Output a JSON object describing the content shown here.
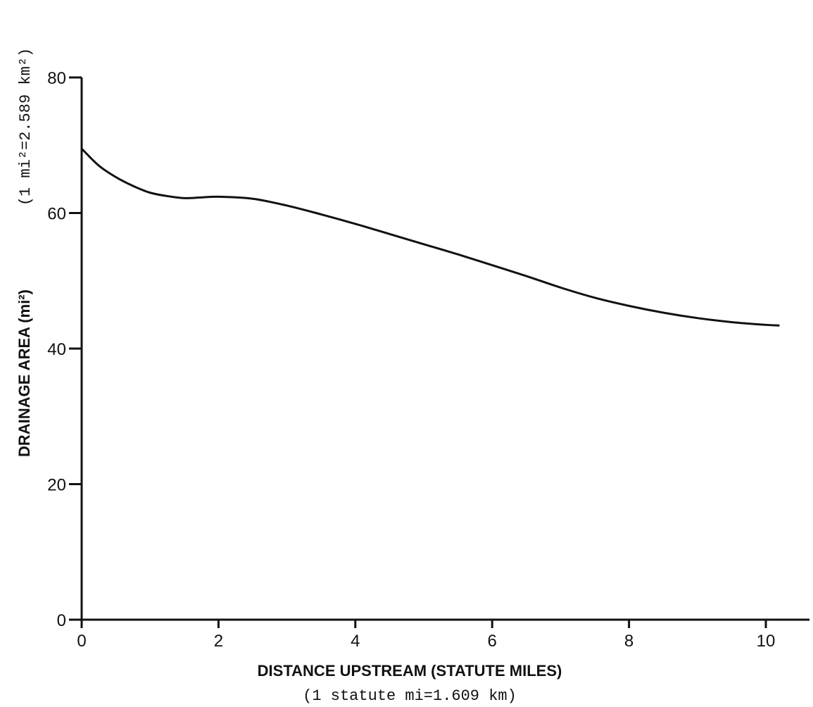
{
  "chart_data": {
    "type": "line",
    "xlabel": "DISTANCE UPSTREAM (STATUTE MILES)",
    "xlabel_sub": "(1 statute mi=1.609 km)",
    "ylabel": "DRAINAGE AREA (mi²)",
    "ylabel_sub": "(1 mi²=2.589 km²)",
    "xlim": [
      0,
      10.5
    ],
    "ylim": [
      0,
      80
    ],
    "x_ticks": [
      0,
      2,
      4,
      6,
      8,
      10
    ],
    "x_tick_labels": [
      "0",
      "2",
      "4",
      "6",
      "8",
      "10"
    ],
    "y_ticks": [
      0,
      20,
      40,
      60,
      80
    ],
    "y_tick_labels": [
      "0",
      "20",
      "40",
      "60",
      "80"
    ],
    "grid": false,
    "series": [
      {
        "x": [
          0,
          0.25,
          0.5,
          0.75,
          1.0,
          1.25,
          1.5,
          1.75,
          2.0,
          2.5,
          3.0,
          3.5,
          4.0,
          4.5,
          5.0,
          5.5,
          6.0,
          6.5,
          7.0,
          7.5,
          8.0,
          8.5,
          9.0,
          9.5,
          10.0,
          10.2
        ],
        "y": [
          69.5,
          67.0,
          65.3,
          64.0,
          63.0,
          62.5,
          62.2,
          62.3,
          62.4,
          62.1,
          61.1,
          59.8,
          58.4,
          56.9,
          55.4,
          53.9,
          52.3,
          50.7,
          49.0,
          47.5,
          46.3,
          45.3,
          44.5,
          43.9,
          43.5,
          43.4
        ]
      }
    ]
  }
}
